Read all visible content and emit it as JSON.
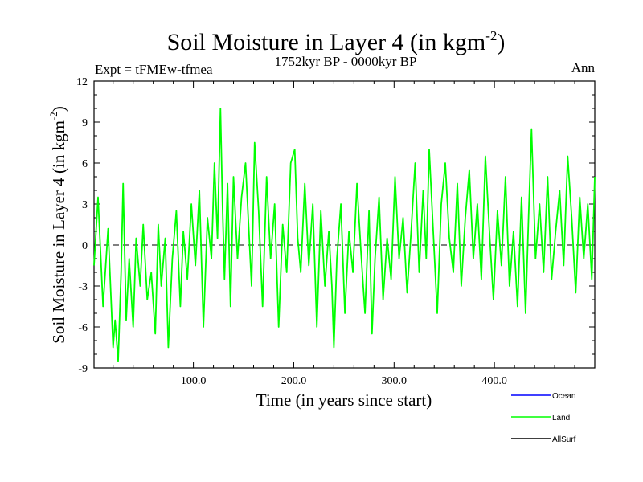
{
  "chart_data": {
    "type": "line",
    "title": "Soil Moisture in Layer 4 (in kgm",
    "title_sup": "-2",
    "title_close": ")",
    "subtitle_left": "Expt = tFMEw-tfmea",
    "subtitle_center": "1752kyr BP - 0000kyr BP",
    "subtitle_right": "Ann",
    "xlabel": "Time (in years since start)",
    "ylabel": "Soil Moisture in Layer 4 (in kgm",
    "ylabel_sup": "-2",
    "ylabel_close": ")",
    "xlim": [
      1,
      500
    ],
    "ylim": [
      -9,
      12
    ],
    "xticks": [
      100,
      200,
      300,
      400
    ],
    "xtick_labels": [
      "100.0",
      "200.0",
      "300.0",
      "400.0"
    ],
    "yticks": [
      -9,
      -6,
      -3,
      0,
      3,
      6,
      9,
      12
    ],
    "ytick_labels": [
      "-9",
      "-6",
      "-3",
      "0",
      "3",
      "6",
      "9",
      "12"
    ],
    "reference_line": 0,
    "series": [
      {
        "name": "Land",
        "color": "#00ff00",
        "x": [
          1,
          5,
          10,
          15,
          20,
          22,
          25,
          28,
          30,
          33,
          36,
          40,
          43,
          47,
          50,
          54,
          58,
          62,
          65,
          68,
          72,
          75,
          79,
          83,
          87,
          90,
          94,
          98,
          102,
          106,
          110,
          114,
          118,
          121,
          124,
          127,
          129,
          131,
          134,
          137,
          140,
          144,
          148,
          152,
          156,
          158,
          161,
          165,
          169,
          173,
          177,
          181,
          185,
          189,
          193,
          197,
          201,
          204,
          207,
          211,
          215,
          219,
          223,
          227,
          231,
          235,
          238,
          240,
          243,
          247,
          251,
          255,
          259,
          263,
          267,
          271,
          275,
          278,
          281,
          285,
          289,
          293,
          297,
          301,
          305,
          309,
          313,
          317,
          321,
          325,
          329,
          332,
          335,
          339,
          343,
          347,
          351,
          355,
          359,
          363,
          367,
          371,
          375,
          379,
          383,
          387,
          391,
          395,
          399,
          403,
          407,
          411,
          415,
          419,
          423,
          427,
          431,
          434,
          437,
          441,
          445,
          449,
          453,
          457,
          461,
          465,
          469,
          473,
          477,
          481,
          485,
          489,
          493,
          497,
          500
        ],
        "values": [
          -1.5,
          3.5,
          -4.5,
          1.2,
          -7.5,
          -5.5,
          -8.5,
          -2.0,
          4.5,
          -5.5,
          -1.0,
          -6.0,
          0.5,
          -3.0,
          1.5,
          -4.0,
          -2.0,
          -6.5,
          1.5,
          -3.0,
          0.5,
          -7.5,
          -1.0,
          2.5,
          -4.5,
          1.0,
          -2.5,
          3.0,
          -1.5,
          4.0,
          -6.0,
          2.0,
          -1.0,
          6.0,
          0.5,
          10.0,
          3.0,
          -2.5,
          4.5,
          -4.5,
          5.0,
          -1.0,
          3.5,
          6.0,
          0.0,
          -3.0,
          7.5,
          2.5,
          -4.5,
          5.0,
          -1.0,
          3.0,
          -6.0,
          1.5,
          -2.0,
          6.0,
          7.0,
          0.5,
          -2.0,
          4.5,
          -1.5,
          3.0,
          -6.0,
          2.5,
          -3.0,
          1.0,
          -3.0,
          -7.5,
          -1.0,
          3.0,
          -5.0,
          1.0,
          -2.0,
          4.5,
          -0.5,
          -5.0,
          2.5,
          -6.5,
          -1.0,
          3.5,
          -4.0,
          0.5,
          -2.5,
          5.0,
          -1.0,
          2.0,
          -3.5,
          1.0,
          6.0,
          -2.0,
          4.0,
          -1.0,
          7.0,
          1.0,
          -5.0,
          3.0,
          6.0,
          0.5,
          -2.0,
          4.5,
          -3.0,
          2.0,
          5.5,
          -1.0,
          3.0,
          -2.5,
          6.5,
          1.0,
          -4.0,
          2.5,
          -1.5,
          5.0,
          -3.0,
          1.0,
          -4.5,
          3.5,
          -5.0,
          2.0,
          8.5,
          -1.0,
          3.0,
          -2.0,
          5.0,
          -2.5,
          1.0,
          4.0,
          -1.5,
          6.5,
          2.0,
          -3.5,
          3.5,
          -1.0,
          3.0,
          -2.5,
          5.0
        ]
      }
    ],
    "legend": [
      {
        "name": "Ocean",
        "color": "#0000ff"
      },
      {
        "name": "Land",
        "color": "#00ff00"
      },
      {
        "name": "AllSurf",
        "color": "#000000"
      }
    ]
  }
}
